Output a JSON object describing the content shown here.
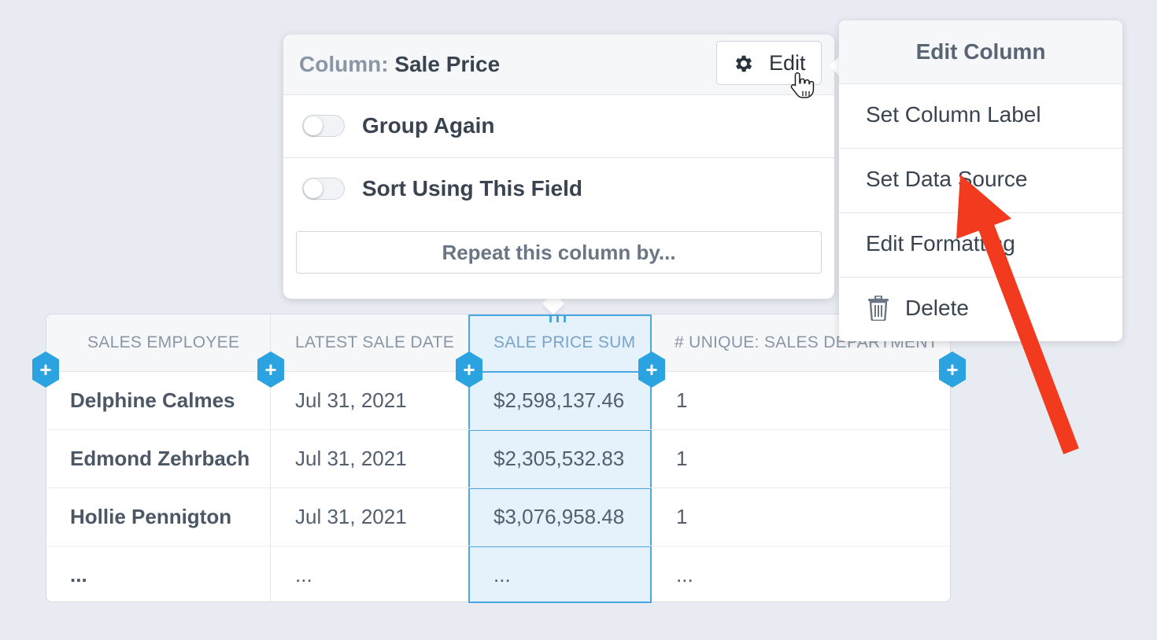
{
  "popover": {
    "title_prefix": "Column:",
    "title_value": "Sale Price",
    "edit_label": "Edit",
    "options": [
      {
        "label": "Group Again",
        "enabled": false
      },
      {
        "label": "Sort Using This Field",
        "enabled": false
      }
    ],
    "repeat_label": "Repeat this column by..."
  },
  "menu": {
    "title": "Edit Column",
    "items": [
      {
        "label": "Set Column Label",
        "icon": ""
      },
      {
        "label": "Set Data Source",
        "icon": ""
      },
      {
        "label": "Edit Formatting",
        "icon": ""
      },
      {
        "label": "Delete",
        "icon": "trash-icon"
      }
    ]
  },
  "table": {
    "columns": [
      "SALES EMPLOYEE",
      "LATEST SALE DATE",
      "SALE PRICE SUM",
      "# UNIQUE: SALES DEPARTMENT"
    ],
    "rows": [
      [
        "Delphine Calmes",
        "Jul 31, 2021",
        "$2,598,137.46",
        "1"
      ],
      [
        "Edmond Zehrbach",
        "Jul 31, 2021",
        "$2,305,532.83",
        "1"
      ],
      [
        "Hollie Pennigton",
        "Jul 31, 2021",
        "$3,076,958.48",
        "1"
      ],
      [
        "...",
        "...",
        "...",
        "..."
      ]
    ],
    "selected_column": "SALE PRICE SUM",
    "add_column_symbol": "+"
  },
  "colors": {
    "accent": "#2aa3e0",
    "selected_fill": "#e5f2fb",
    "arrow": "#f23a1f",
    "background": "#e8ecf2"
  }
}
